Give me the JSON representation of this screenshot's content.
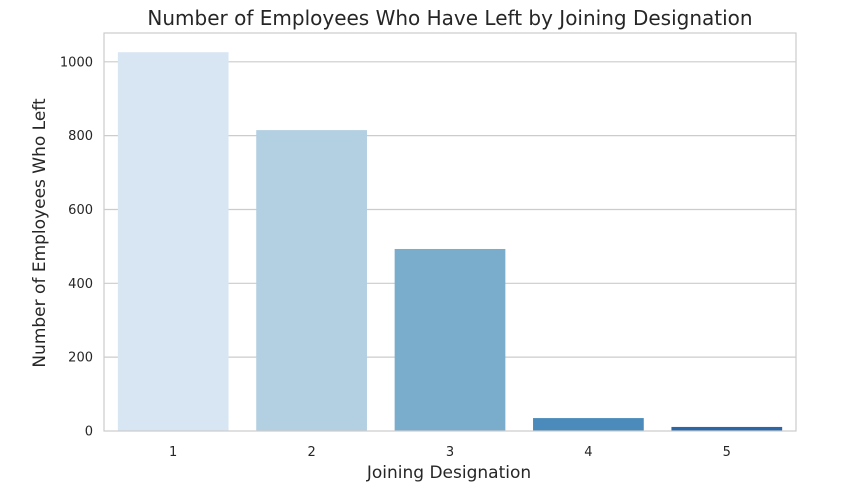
{
  "chart_data": {
    "type": "bar",
    "title": "Number of Employees Who Have Left by Joining Designation",
    "xlabel": "Joining Designation",
    "ylabel": "Number of Employees Who Left",
    "categories": [
      "1",
      "2",
      "3",
      "4",
      "5"
    ],
    "values": [
      1026,
      815,
      493,
      35,
      11
    ],
    "yticks": [
      0,
      200,
      400,
      600,
      800,
      1000
    ],
    "ylim": [
      0,
      1078
    ],
    "grid": "y",
    "legend": "none",
    "colors": [
      "#d8e6f4",
      "#b3cfe2",
      "#7aaccb",
      "#4a8bbb",
      "#2c66a6"
    ]
  }
}
